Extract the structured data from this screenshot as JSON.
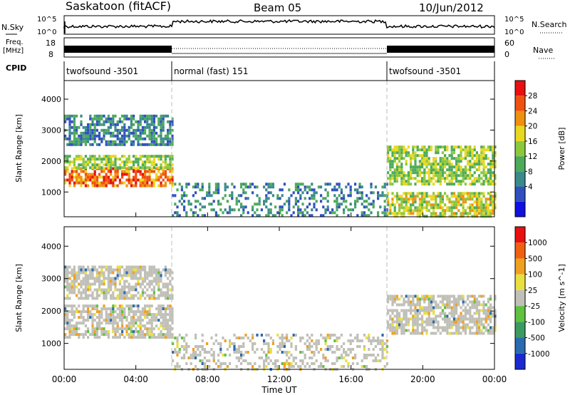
{
  "header": {
    "title": "Saskatoon (fitACF)",
    "beam": "Beam 05",
    "date": "10/Jun/2012"
  },
  "noise_panel": {
    "left_label": "N.Sky",
    "right_label": "N.Search",
    "left_ticks": [
      "10^5",
      "10^0"
    ],
    "right_ticks": [
      "10^5",
      "10^0"
    ]
  },
  "freq_panel": {
    "left_label_line1": "Freq.",
    "left_label_line2": "[MHz]",
    "left_ticks": [
      "18",
      "8"
    ],
    "right_ticks": [
      "60",
      "0"
    ],
    "right_label": "Nave"
  },
  "cpid": {
    "label": "CPID",
    "segments": [
      {
        "start": 0,
        "end": 6,
        "label": "twofsound -3501"
      },
      {
        "start": 6,
        "end": 18,
        "label": "normal (fast) 151"
      },
      {
        "start": 18,
        "end": 24,
        "label": "twofsound -3501"
      }
    ]
  },
  "chart_data": [
    {
      "type": "heatmap",
      "quantity": "power",
      "ylabel": "Slant Range [km]",
      "yticks": [
        1000,
        2000,
        3000,
        4000
      ],
      "ylim": [
        200,
        4600
      ],
      "xlim": [
        0,
        24
      ],
      "colorbar": {
        "label": "Power [dB]",
        "ticks": [
          "28",
          "24",
          "20",
          "16",
          "12",
          "8",
          "4"
        ],
        "colors": [
          "#1010e0",
          "#3050c0",
          "#3a8a8a",
          "#4caa5a",
          "#8cc83c",
          "#e8d820",
          "#f09010",
          "#f05010",
          "#e81010"
        ]
      },
      "dominant_bands": [
        {
          "start_hour": 0,
          "end_hour": 6,
          "range_km": [
            1200,
            1800
          ],
          "power_db": 26
        },
        {
          "start_hour": 0,
          "end_hour": 6,
          "range_km": [
            1800,
            2200
          ],
          "power_db": 16
        },
        {
          "start_hour": 0,
          "end_hour": 6,
          "range_km": [
            2500,
            3500
          ],
          "power_db": 8
        },
        {
          "start_hour": 6,
          "end_hour": 18,
          "range_km": [
            200,
            1300
          ],
          "power_db": 8
        },
        {
          "start_hour": 18,
          "end_hour": 24,
          "range_km": [
            1300,
            2500
          ],
          "power_db": 16
        },
        {
          "start_hour": 18,
          "end_hour": 24,
          "range_km": [
            200,
            1000
          ],
          "power_db": 18
        }
      ]
    },
    {
      "type": "heatmap",
      "quantity": "velocity",
      "ylabel": "Slant Range [km]",
      "yticks": [
        1000,
        2000,
        3000,
        4000
      ],
      "ylim": [
        200,
        4600
      ],
      "xlim": [
        0,
        24
      ],
      "xlabel": "Time UT",
      "xticks": [
        "00:00",
        "04:00",
        "08:00",
        "12:00",
        "16:00",
        "20:00",
        "00:00"
      ],
      "colorbar": {
        "label": "Velocity [m s^-1]",
        "ticks": [
          "1000",
          "500",
          "100",
          "25",
          "-25",
          "-100",
          "-500",
          "-1000"
        ],
        "colors": [
          "#1a2ad0",
          "#2a6ab0",
          "#3a9a60",
          "#60c040",
          "#c0c0b8",
          "#e8e040",
          "#f0a020",
          "#f06010",
          "#e81010"
        ]
      },
      "dominant_bands": [
        {
          "start_hour": 0,
          "end_hour": 6,
          "range_km": [
            1200,
            2200
          ],
          "velocity": 0
        },
        {
          "start_hour": 0,
          "end_hour": 6,
          "range_km": [
            2400,
            3400
          ],
          "velocity": 0
        },
        {
          "start_hour": 6,
          "end_hour": 18,
          "range_km": [
            200,
            1300
          ],
          "velocity": 0
        },
        {
          "start_hour": 18,
          "end_hour": 24,
          "range_km": [
            1300,
            2500
          ],
          "velocity": -50
        }
      ]
    }
  ]
}
